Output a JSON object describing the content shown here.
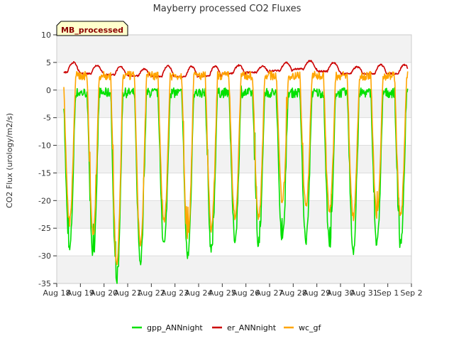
{
  "chart_data": {
    "type": "line",
    "title": "Mayberry processed CO2 Fluxes",
    "ylabel": "CO2 Flux (urology/m2/s)",
    "xlabel": "",
    "tag_label": "MB_processed",
    "ylim": [
      -35,
      10
    ],
    "xlim": [
      0,
      15
    ],
    "yticks": [
      -35,
      -30,
      -25,
      -20,
      -15,
      -10,
      -5,
      0,
      5,
      10
    ],
    "xticks": [
      {
        "value": 0,
        "label": "Aug 18"
      },
      {
        "value": 1,
        "label": "Aug 19"
      },
      {
        "value": 2,
        "label": "Aug 20"
      },
      {
        "value": 3,
        "label": "Aug 21"
      },
      {
        "value": 4,
        "label": "Aug 22"
      },
      {
        "value": 5,
        "label": "Aug 23"
      },
      {
        "value": 6,
        "label": "Aug 24"
      },
      {
        "value": 7,
        "label": "Aug 25"
      },
      {
        "value": 8,
        "label": "Aug 26"
      },
      {
        "value": 9,
        "label": "Aug 27"
      },
      {
        "value": 10,
        "label": "Aug 28"
      },
      {
        "value": 11,
        "label": "Aug 29"
      },
      {
        "value": 12,
        "label": "Aug 30"
      },
      {
        "value": 13,
        "label": "Aug 31"
      },
      {
        "value": 14,
        "label": "Sep 1"
      },
      {
        "value": 15,
        "label": "Sep 2"
      }
    ],
    "day_range": [
      0.25,
      14.95
    ],
    "series": [
      {
        "name": "gpp_ANNnight",
        "color": "#00e000",
        "night": 0,
        "daily_min": [
          -29,
          -30,
          -35,
          -31,
          -28,
          -30,
          -29,
          -27,
          -28,
          -27,
          -27,
          -28,
          -29,
          -28
        ],
        "data_start": 0.3,
        "data_end": 14.85
      },
      {
        "name": "er_ANNnight",
        "color": "#cc0000",
        "daily_base": [
          3.2,
          3.0,
          2.8,
          2.6,
          2.5,
          2.4,
          2.5,
          3.0,
          3.2,
          3.5,
          3.8,
          3.4,
          3.0,
          3.0
        ],
        "daily_peak": [
          5.0,
          4.5,
          4.2,
          3.8,
          4.4,
          4.3,
          4.3,
          4.5,
          4.3,
          5.0,
          5.3,
          5.0,
          4.2,
          4.6
        ],
        "data_start": 0.3,
        "data_end": 14.85
      },
      {
        "name": "wc_gf",
        "color": "#ffa500",
        "night": 2.8,
        "daily_min": [
          -24,
          -26,
          -31,
          -28,
          -24,
          -27,
          -25,
          -23,
          -23,
          -20,
          -21,
          -22,
          -23,
          -23
        ],
        "data_start": 0.3,
        "data_end": 14.85
      }
    ]
  }
}
